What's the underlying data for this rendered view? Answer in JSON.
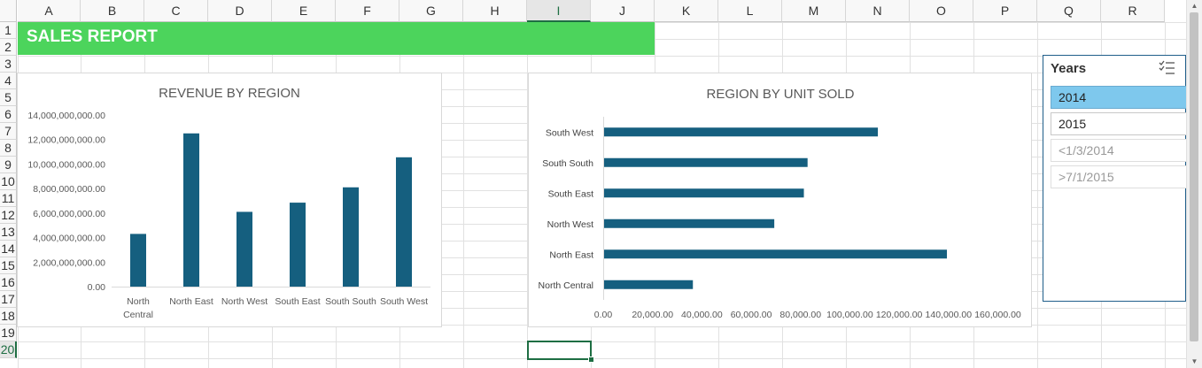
{
  "columns": [
    "A",
    "B",
    "C",
    "D",
    "E",
    "F",
    "G",
    "H",
    "I",
    "J",
    "K",
    "L",
    "M",
    "N",
    "O",
    "P",
    "Q",
    "R"
  ],
  "rows": [
    "1",
    "2",
    "3",
    "4",
    "5",
    "6",
    "7",
    "8",
    "9",
    "10",
    "11",
    "12",
    "13",
    "14",
    "15",
    "16",
    "17",
    "18",
    "19",
    "20"
  ],
  "active_column": "I",
  "active_row": "20",
  "title_bar": {
    "text": "SALES REPORT",
    "color": "#4cd45c"
  },
  "bar_color": "#155f7f",
  "charts": {
    "revenue": {
      "title": "REVENUE BY REGION",
      "y_ticks": [
        "0.00",
        "2,000,000,000.00",
        "4,000,000,000.00",
        "6,000,000,000.00",
        "8,000,000,000.00",
        "10,000,000,000.00",
        "12,000,000,000.00",
        "14,000,000,000.00"
      ],
      "x_labels": [
        [
          "North",
          "Central"
        ],
        [
          "North East"
        ],
        [
          "North West"
        ],
        [
          "South East"
        ],
        [
          "South South"
        ],
        [
          "South West"
        ]
      ]
    },
    "units": {
      "title": "REGION BY UNIT SOLD",
      "y_labels": [
        "South West",
        "South South",
        "South East",
        "North West",
        "North East",
        "North Central"
      ],
      "x_ticks": [
        "0.00",
        "20,000.00",
        "40,000.00",
        "60,000.00",
        "80,000.00",
        "100,000.00",
        "120,000.00",
        "140,000.00",
        "160,000.00"
      ]
    }
  },
  "chart_data": [
    {
      "type": "bar",
      "title": "REVENUE BY REGION",
      "categories": [
        "North Central",
        "North East",
        "North West",
        "South East",
        "South South",
        "South West"
      ],
      "values": [
        4300000000,
        12500000000,
        6100000000,
        6850000000,
        8100000000,
        10550000000
      ],
      "ylim": [
        0,
        14000000000
      ],
      "grid": false,
      "legend": "none"
    },
    {
      "type": "bar",
      "orientation": "horizontal",
      "title": "REGION BY UNIT SOLD",
      "categories": [
        "South West",
        "South South",
        "South East",
        "North West",
        "North East",
        "North Central"
      ],
      "values": [
        111000,
        82500,
        81000,
        69000,
        139000,
        36000
      ],
      "xlim": [
        0,
        160000
      ],
      "grid": false,
      "legend": "none"
    }
  ],
  "slicer": {
    "title": "Years",
    "icon": "multi-select-icon",
    "items": [
      {
        "label": "2014",
        "state": "selected"
      },
      {
        "label": "2015",
        "state": "normal"
      },
      {
        "label": "<1/3/2014",
        "state": "nodata"
      },
      {
        "label": ">7/1/2015",
        "state": "nodata"
      }
    ]
  }
}
